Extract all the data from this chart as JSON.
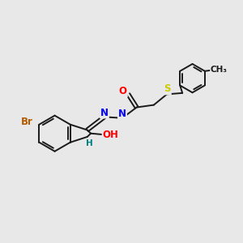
{
  "bg_color": "#e8e8e8",
  "bond_color": "#1a1a1a",
  "bond_width": 1.4,
  "atom_colors": {
    "Br": "#b35a00",
    "O": "#ff0000",
    "N": "#0000ff",
    "S": "#cccc00",
    "H": "#008080",
    "C": "#1a1a1a"
  },
  "font_size": 8.5,
  "fig_size": [
    3.0,
    3.0
  ],
  "dpi": 100
}
